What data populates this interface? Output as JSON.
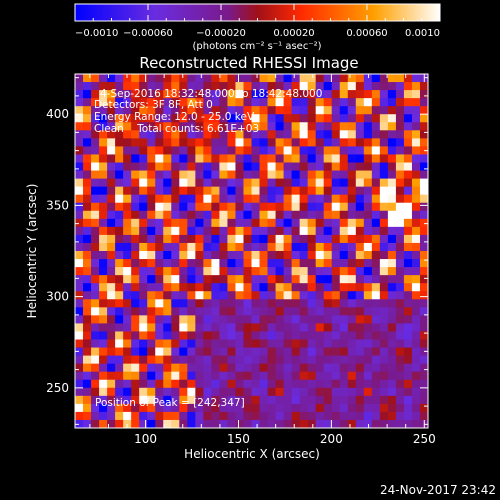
{
  "chart_data": {
    "type": "heatmap",
    "title": "Reconstructed RHESSI Image",
    "xlabel": "Heliocentric X (arcsec)",
    "ylabel": "Heliocentric Y (arcsec)",
    "xlim": [
      62,
      252
    ],
    "ylim": [
      228,
      422
    ],
    "x_ticks": [
      "100",
      "150",
      "200",
      "250"
    ],
    "x_tick_values": [
      100,
      150,
      200,
      250
    ],
    "y_ticks": [
      "250",
      "300",
      "350",
      "400"
    ],
    "y_tick_values": [
      250,
      300,
      350,
      400
    ],
    "grid": false,
    "colorbar": {
      "min": -0.001,
      "max": 0.001,
      "tick_labels": [
        "−0.0010",
        "−0.00060",
        "−0.00020",
        "0.00020",
        "0.00060",
        "0.0010"
      ],
      "tick_values": [
        -0.001,
        -0.0006,
        -0.0002,
        0.0002,
        0.0006,
        0.001
      ],
      "units_label": "(photons cm⁻² s⁻¹ asec⁻²)",
      "colors": [
        "#0000ff",
        "#6a2ce0",
        "#7a1a8a",
        "#a01018",
        "#ff2a00",
        "#ffa000",
        "#ffffff"
      ]
    },
    "annotations": [
      "4-Sep-2016 18:32:48.000 to 18:42:48.000",
      "Detectors: 3F 8F, Att 0",
      "Energy Range: 12.0 - 25.0 keV",
      "Clean    Total counts: 6.61E+03"
    ],
    "peak_label": "Position of Peak = [242,347]",
    "peak": {
      "x": 242,
      "y": 347
    },
    "footer_timestamp": "24-Nov-2017 23:42"
  }
}
